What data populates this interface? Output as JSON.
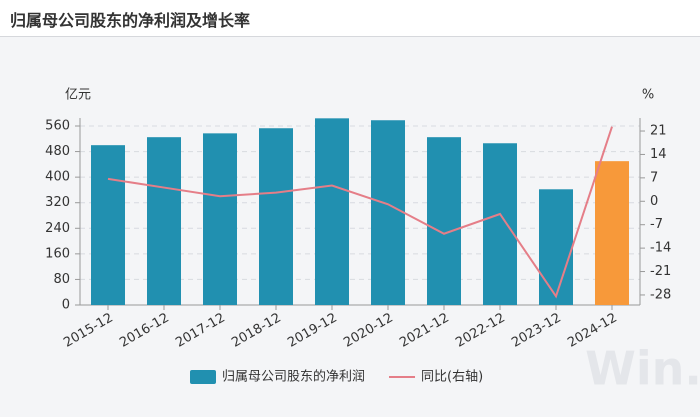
{
  "title": "归属母公司股东的净利润及增长率",
  "watermark": "Win.d",
  "chart_data": {
    "type": "bar-line",
    "y_unit": "亿元",
    "y2_unit": "%",
    "categories": [
      "2015-12",
      "2016-12",
      "2017-12",
      "2018-12",
      "2019-12",
      "2020-12",
      "2021-12",
      "2022-12",
      "2023-12",
      "2024-12"
    ],
    "series": [
      {
        "name": "归属母公司股东的净利润",
        "type": "bar",
        "color": "#2190b0",
        "colors": [
          "#2190b0",
          "#2190b0",
          "#2190b0",
          "#2190b0",
          "#2190b0",
          "#2190b0",
          "#2190b0",
          "#2190b0",
          "#2190b0",
          "#f7993a"
        ],
        "values": [
          500,
          525,
          537,
          553,
          584,
          578,
          525,
          506,
          362,
          450
        ]
      },
      {
        "name": "同比(右轴)",
        "type": "line",
        "axis": "y2",
        "color": "#e57e88",
        "values": [
          6.7,
          4.1,
          1.5,
          2.6,
          4.7,
          -0.9,
          -9.7,
          -3.8,
          -28.4,
          22.3
        ]
      }
    ],
    "ylim": [
      0,
      560
    ],
    "yticks": [
      0,
      80,
      160,
      240,
      320,
      400,
      480,
      560
    ],
    "y2lim": [
      -31,
      22.5
    ],
    "y2ticks": [
      -28,
      -21,
      -14,
      -7,
      0,
      7,
      14,
      21
    ],
    "grid": true
  }
}
